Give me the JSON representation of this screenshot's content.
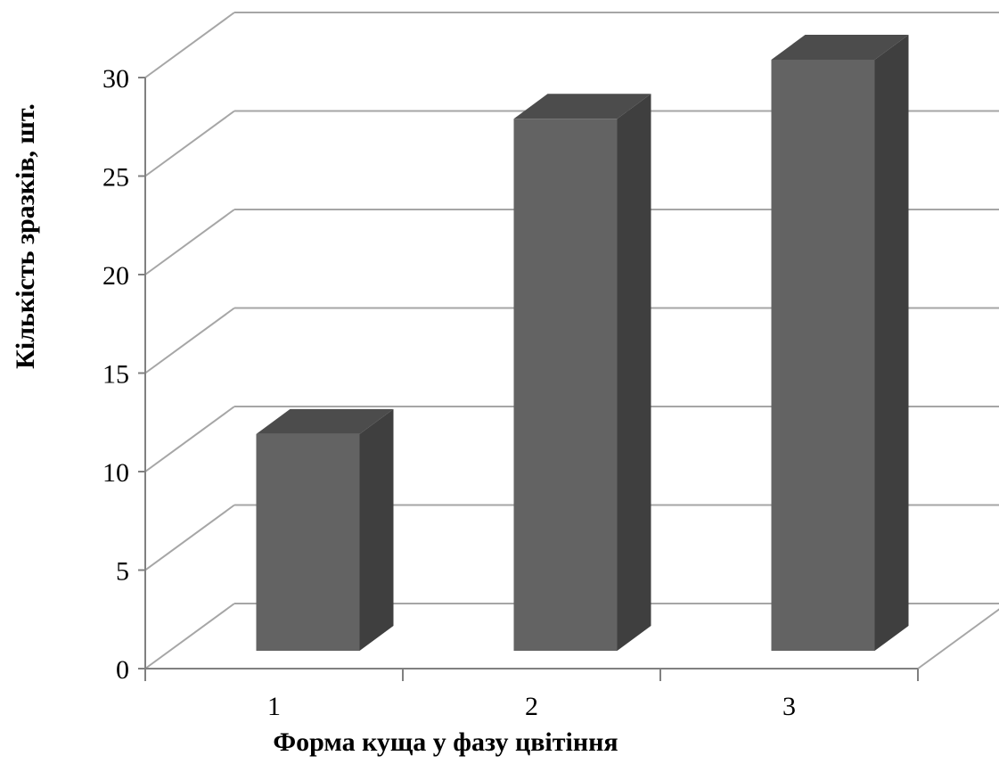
{
  "chart_data": {
    "type": "bar",
    "style": "3d-column",
    "categories": [
      "1",
      "2",
      "3"
    ],
    "values": [
      11,
      27,
      30
    ],
    "title": "",
    "xlabel": "Форма куща у фазу цвітіння",
    "ylabel": "Кількість зразків, шт.",
    "ylim": [
      0,
      30
    ],
    "yticks": [
      0,
      5,
      10,
      15,
      20,
      25,
      30
    ],
    "grid": true,
    "legend": "none",
    "colors": {
      "bar_front": "#636363",
      "bar_side": "#3f3f3f",
      "bar_top": "#4c4c4c",
      "grid": "#a6a6a6",
      "axis": "#808080"
    }
  }
}
